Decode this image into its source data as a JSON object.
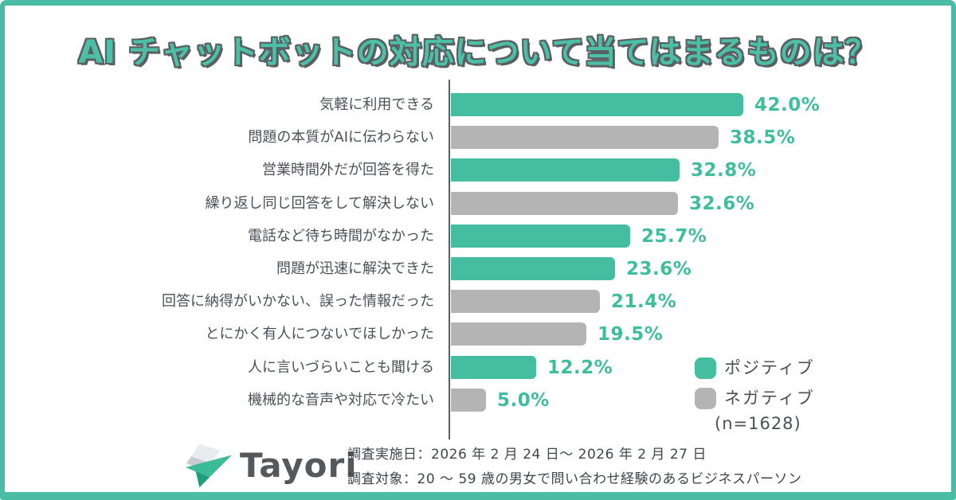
{
  "title": "AI チャットボットの対応について当てはまるものは？",
  "colors": {
    "positive": "#45BDA1",
    "negative": "#B5B4B4",
    "frame": "#4BBCA4",
    "title": "#4CC0A6",
    "value_text": "#3EBD9F",
    "label_text": "#4B5058"
  },
  "chart_data": {
    "type": "bar",
    "orientation": "horizontal",
    "title": "AI チャットボットの対応について当てはまるものは？",
    "categories": [
      "気軽に利用できる",
      "問題の本質がAIに伝わらない",
      "営業時間外だが回答を得た",
      "繰り返し同じ回答をして解決しない",
      "電話など待ち時間がなかった",
      "問題が迅速に解決できた",
      "回答に納得がいかない、誤った情報だった",
      "とにかく有人につないでほしかった",
      "人に言いづらいことも聞ける",
      "機械的な音声や対応で冷たい"
    ],
    "values": [
      42.0,
      38.5,
      32.8,
      32.6,
      25.7,
      23.6,
      21.4,
      19.5,
      12.2,
      5.0
    ],
    "value_labels": [
      "42.0%",
      "38.5%",
      "32.8%",
      "32.6%",
      "25.7%",
      "23.6%",
      "21.4%",
      "19.5%",
      "12.2%",
      "5.0%"
    ],
    "sentiments": [
      "positive",
      "negative",
      "positive",
      "negative",
      "positive",
      "positive",
      "negative",
      "negative",
      "positive",
      "negative"
    ],
    "xlim": [
      0,
      45
    ],
    "grid": false,
    "legend_position": "bottom-right",
    "legend": [
      {
        "key": "positive",
        "label": "ポジティブ",
        "color": "#45BDA1"
      },
      {
        "key": "negative",
        "label": "ネガティブ",
        "color": "#B5B4B4"
      }
    ],
    "sample_size_note": "(n=1628)"
  },
  "footer": {
    "logo_text": "Tayori",
    "survey_date": "調査実施日：2026 年 2 月 24 日～ 2026 年 2 月 27 日",
    "survey_target": "調査対象：20 ～ 59 歳の男女で問い合わせ経験のあるビジネスパーソン"
  }
}
